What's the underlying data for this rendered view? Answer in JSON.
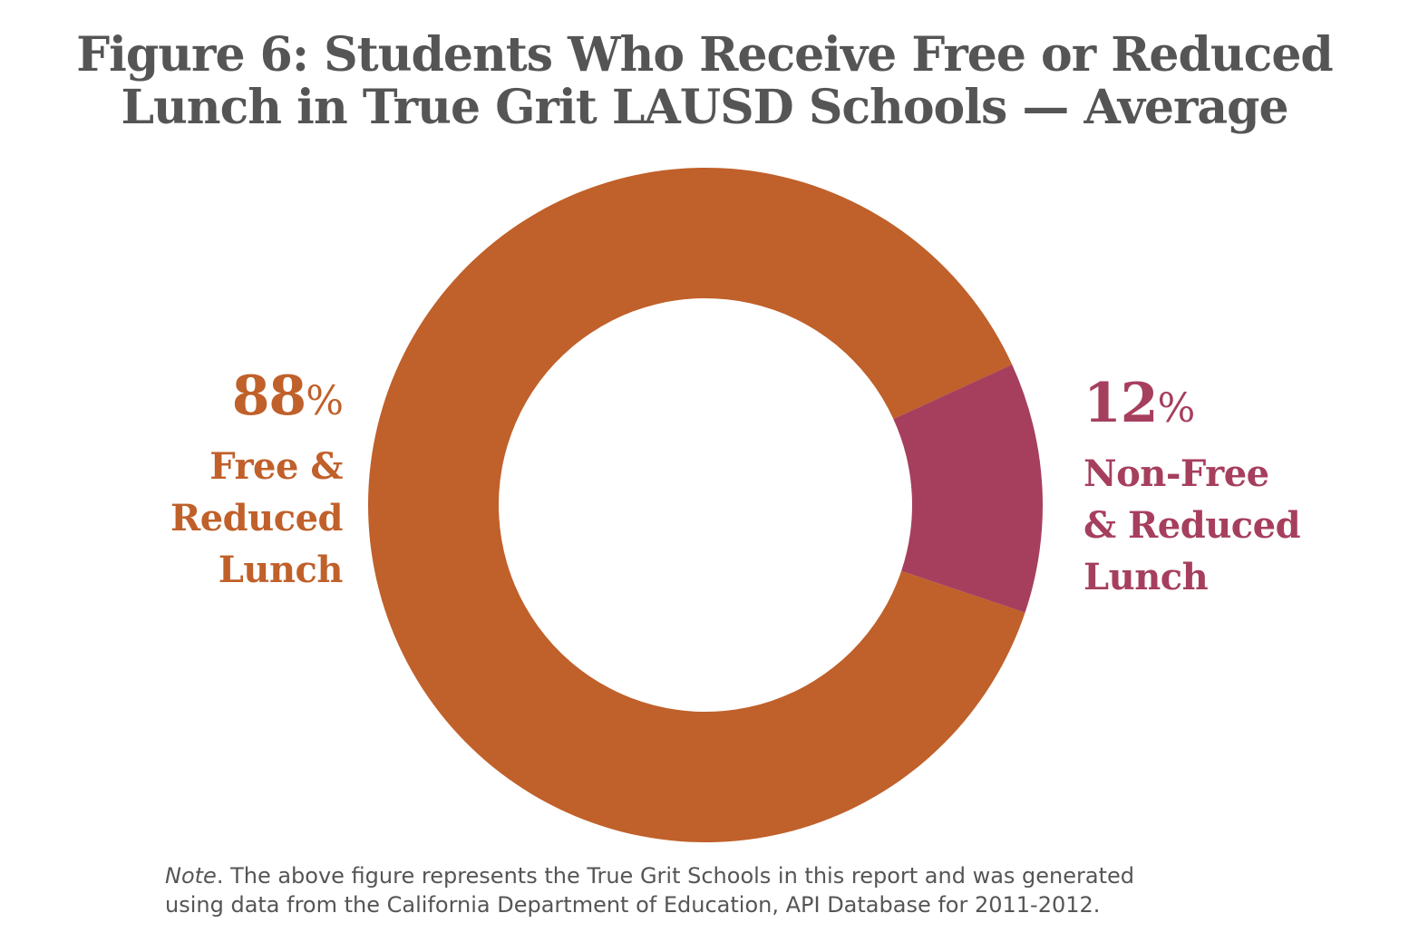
{
  "chart_data": {
    "type": "pie",
    "variant": "donut",
    "title": "Figure 6: Students Who Receive Free or Reduced Lunch in True Grit LAUSD Schools — Average",
    "title_lines": [
      "Figure 6: Students Who Receive Free or Reduced",
      "Lunch in True Grit LAUSD Schools — Average"
    ],
    "slices": [
      {
        "value": 88,
        "value_label": "88",
        "unit": "%",
        "label_lines": [
          "Free &",
          "Reduced",
          "Lunch"
        ],
        "color": "#c0602a"
      },
      {
        "value": 12,
        "value_label": "12",
        "unit": "%",
        "label_lines": [
          "Non-Free",
          "& Reduced",
          "Lunch"
        ],
        "color": "#a63f5d"
      }
    ],
    "note": {
      "lead": "Note",
      "text_line1": ". The above figure represents the True Grit Schools in this report and was generated",
      "text_line2": "using data from the California Department of Education, API Database for 2011-2012."
    }
  },
  "colors": {
    "title": "#555555",
    "background": "#ffffff",
    "note": "#555555"
  }
}
